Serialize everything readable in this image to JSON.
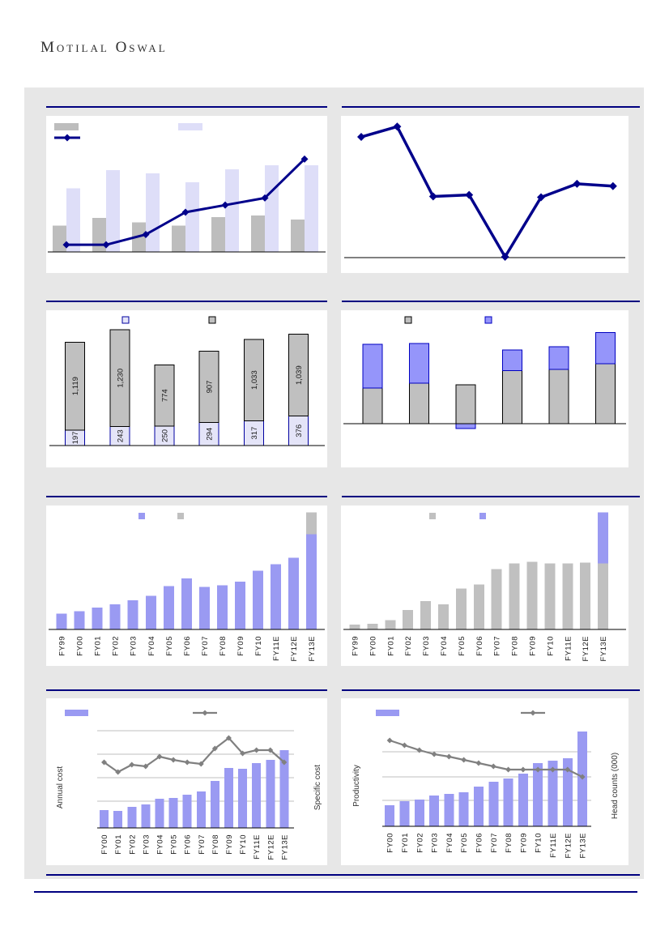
{
  "page": {
    "logo_text": "Motilal Oswal",
    "band_color": "#E7E7E7",
    "rule_color": "#000080",
    "colors": {
      "navy_line": "#00008B",
      "gray_bar": "#BDBDBD",
      "lavender_bar": "#DEDEF8",
      "periwinkle_bar": "#9A9AF2",
      "purple_segment": "#9595FA",
      "silver_segment": "#C0C0C0",
      "gray_line": "#808080"
    }
  },
  "chart_data": [
    {
      "type": "bar",
      "position": "row1-left",
      "title": "",
      "categories": null,
      "ymax": 125,
      "series": [
        {
          "name": "gray-bars",
          "type": "bar",
          "color": "#BDBDBD",
          "values": [
            33,
            43,
            37,
            33,
            44,
            46,
            41
          ]
        },
        {
          "name": "lavender-bars",
          "type": "bar",
          "color": "#DEDEF8",
          "values": [
            80,
            103,
            99,
            88,
            104,
            109,
            109
          ]
        },
        {
          "name": "navy-trend-line",
          "type": "line",
          "color": "#00008B",
          "values": [
            9,
            9,
            22,
            50,
            59,
            68,
            117
          ]
        }
      ],
      "legend": [
        {
          "swatch": "bar",
          "color": "#BDBDBD"
        },
        {
          "swatch": "bar",
          "color": "#DEDEF8"
        },
        {
          "swatch": "line",
          "color": "#00008B"
        }
      ]
    },
    {
      "type": "line",
      "position": "row1-right",
      "title": "",
      "categories": null,
      "ymax": 172,
      "series": [
        {
          "name": "navy-line",
          "type": "line",
          "color": "#00008B",
          "values": [
            152,
            165,
            77,
            79,
            1,
            76,
            93,
            90
          ]
        }
      ],
      "legend": []
    },
    {
      "type": "bar",
      "position": "row2-left",
      "title": "",
      "categories": null,
      "stacked": true,
      "ymax": 1560,
      "series": [
        {
          "name": "lavender-bottom-segment",
          "type": "bar",
          "color": "#E4E4F8",
          "border": "#0000A0",
          "values": [
            197,
            243,
            250,
            294,
            317,
            376
          ],
          "labels": [
            "197",
            "243",
            "250",
            "294",
            "317",
            "376"
          ]
        },
        {
          "name": "gray-top-segment",
          "type": "bar",
          "color": "#C0C0C0",
          "border": "#000000",
          "values": [
            1119,
            1230,
            774,
            907,
            1033,
            1039
          ],
          "labels": [
            "1,119",
            "1,230",
            "774",
            "907",
            "1,033",
            "1,039"
          ]
        }
      ],
      "legend": [
        {
          "swatch": "square",
          "color": "#E4E4F8",
          "border": "#0000A0"
        },
        {
          "swatch": "square",
          "color": "#C0C0C0",
          "border": "#000000"
        }
      ]
    },
    {
      "type": "bar",
      "position": "row2-right",
      "title": "",
      "categories": null,
      "stacked": true,
      "ymax": 125,
      "series": [
        {
          "name": "gray-bottom-segment",
          "type": "bar",
          "color": "#C0C0C0",
          "border": "#000000",
          "values": [
            46,
            52,
            50,
            68,
            70,
            77
          ]
        },
        {
          "name": "purple-top-segment",
          "type": "bar",
          "color": "#9595FA",
          "border": "#0000C0",
          "values": [
            56,
            51,
            -6,
            27,
            29,
            40
          ]
        }
      ],
      "legend": [
        {
          "swatch": "square",
          "color": "#C0C0C0",
          "border": "#000000"
        },
        {
          "swatch": "square",
          "color": "#9595FA",
          "border": "#0000C0"
        }
      ]
    },
    {
      "type": "bar",
      "position": "row3-left",
      "title": "",
      "stacked": true,
      "categories": [
        "FY99",
        "FY00",
        "FY01",
        "FY02",
        "FY03",
        "FY04",
        "FY05",
        "FY06",
        "FY07",
        "FY08",
        "FY09",
        "FY10",
        "FY11E",
        "FY12E",
        "FY13E"
      ],
      "ymax": 155,
      "series": [
        {
          "name": "periwinkle-bars",
          "type": "bar",
          "color": "#9A9AF2",
          "values": [
            20,
            23,
            28,
            32,
            37,
            43,
            55,
            65,
            54,
            56,
            61,
            75,
            83,
            91,
            121
          ]
        },
        {
          "name": "gray-top-segment",
          "type": "bar",
          "color": "#C0C0C0",
          "values": [
            0,
            0,
            0,
            0,
            0,
            0,
            0,
            0,
            0,
            0,
            0,
            0,
            0,
            0,
            28
          ]
        }
      ],
      "legend": [
        {
          "swatch": "square",
          "color": "#9A9AF2"
        },
        {
          "swatch": "square",
          "color": "#C0C0C0"
        }
      ]
    },
    {
      "type": "bar",
      "position": "row3-right",
      "title": "",
      "stacked": true,
      "categories": [
        "FY99",
        "FY00",
        "FY01",
        "FY02",
        "FY03",
        "FY04",
        "FY05",
        "FY06",
        "FY07",
        "FY08",
        "FY09",
        "FY10",
        "FY11E",
        "FY12E",
        "FY13E"
      ],
      "ymax": 155,
      "series": [
        {
          "name": "gray-bars",
          "type": "bar",
          "color": "#C0C0C0",
          "values": [
            6,
            7,
            12,
            25,
            36,
            32,
            52,
            57,
            77,
            84,
            86,
            84,
            84,
            85,
            84
          ]
        },
        {
          "name": "purple-top-segment",
          "type": "bar",
          "color": "#9A9AF2",
          "values": [
            0,
            0,
            0,
            0,
            0,
            0,
            0,
            0,
            0,
            0,
            0,
            0,
            0,
            0,
            65
          ]
        }
      ],
      "legend": [
        {
          "swatch": "square",
          "color": "#C0C0C0"
        },
        {
          "swatch": "square",
          "color": "#9A9AF2"
        }
      ]
    },
    {
      "type": "bar",
      "position": "row4-left",
      "title": "",
      "categories": [
        "FY00",
        "FY01",
        "FY02",
        "FY03",
        "FY04",
        "FY05",
        "FY06",
        "FY07",
        "FY08",
        "FY09",
        "FY10",
        "FY11E",
        "FY12E",
        "FY13E"
      ],
      "ylabel_left": "Annual cost",
      "ylabel_right": "Specific cost",
      "gridlines": [
        33,
        62,
        91,
        120
      ],
      "ymax": 126,
      "series": [
        {
          "name": "annual-cost-bars",
          "type": "bar",
          "color": "#9A9AF2",
          "values": [
            22,
            21,
            26,
            29,
            36,
            37,
            41,
            45,
            58,
            74,
            73,
            80,
            84,
            96
          ]
        },
        {
          "name": "specific-cost-line",
          "type": "line",
          "color": "#808080",
          "values": [
            81,
            69,
            78,
            76,
            88,
            84,
            81,
            79,
            98,
            111,
            92,
            96,
            96,
            81
          ]
        }
      ],
      "legend": [
        {
          "swatch": "bar",
          "color": "#9A9AF2"
        },
        {
          "swatch": "line",
          "color": "#808080"
        }
      ]
    },
    {
      "type": "bar",
      "position": "row4-right",
      "title": "",
      "categories": [
        "FY00",
        "FY01",
        "FY02",
        "FY03",
        "FY04",
        "FY05",
        "FY06",
        "FY07",
        "FY08",
        "FY09",
        "FY10",
        "FY11E",
        "FY12E",
        "FY13E"
      ],
      "ylabel_left": "Productivity",
      "ylabel_right": "Head counts (000)",
      "gridlines": [
        32,
        61,
        92
      ],
      "ymax": 126,
      "series": [
        {
          "name": "productivity-bars",
          "type": "bar",
          "color": "#9A9AF2",
          "values": [
            26,
            31,
            33,
            38,
            40,
            42,
            49,
            55,
            59,
            65,
            78,
            81,
            84,
            117
          ]
        },
        {
          "name": "head-count-line",
          "type": "line",
          "color": "#808080",
          "values": [
            106,
            100,
            94,
            89,
            86,
            82,
            78,
            74,
            70,
            70,
            70,
            70,
            70,
            61
          ]
        }
      ],
      "legend": [
        {
          "swatch": "bar",
          "color": "#9A9AF2"
        },
        {
          "swatch": "line",
          "color": "#808080"
        }
      ]
    }
  ]
}
